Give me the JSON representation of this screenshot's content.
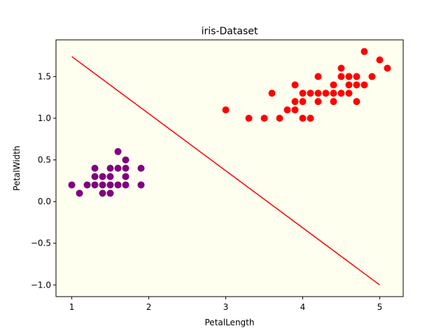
{
  "chart_data": {
    "type": "scatter",
    "title": "iris-Dataset",
    "xlabel": "PetalLength",
    "ylabel": "PetalWidth",
    "xlim": [
      0.795,
      5.305
    ],
    "ylim": [
      -1.14,
      1.94
    ],
    "xticks": [
      1,
      2,
      3,
      4,
      5
    ],
    "yticks": [
      -1.0,
      -0.5,
      0.0,
      0.5,
      1.0,
      1.5
    ],
    "ytick_labels": [
      "−1.0",
      "−0.5",
      "0.0",
      "0.5",
      "1.0",
      "1.5"
    ],
    "grid": false,
    "legend": false,
    "plot_background": "#fffff0",
    "series": [
      {
        "color": "#800080",
        "points": [
          [
            1.0,
            0.2
          ],
          [
            1.1,
            0.1
          ],
          [
            1.2,
            0.2
          ],
          [
            1.3,
            0.2
          ],
          [
            1.3,
            0.3
          ],
          [
            1.3,
            0.4
          ],
          [
            1.4,
            0.1
          ],
          [
            1.4,
            0.2
          ],
          [
            1.4,
            0.3
          ],
          [
            1.5,
            0.1
          ],
          [
            1.5,
            0.2
          ],
          [
            1.5,
            0.3
          ],
          [
            1.5,
            0.4
          ],
          [
            1.6,
            0.2
          ],
          [
            1.6,
            0.4
          ],
          [
            1.6,
            0.6
          ],
          [
            1.7,
            0.2
          ],
          [
            1.7,
            0.3
          ],
          [
            1.7,
            0.4
          ],
          [
            1.7,
            0.5
          ],
          [
            1.9,
            0.2
          ],
          [
            1.9,
            0.4
          ]
        ]
      },
      {
        "color": "#ff0000",
        "points": [
          [
            3.0,
            1.1
          ],
          [
            3.3,
            1.0
          ],
          [
            3.5,
            1.0
          ],
          [
            3.6,
            1.3
          ],
          [
            3.7,
            1.0
          ],
          [
            3.8,
            1.1
          ],
          [
            3.9,
            1.1
          ],
          [
            3.9,
            1.2
          ],
          [
            3.9,
            1.4
          ],
          [
            4.0,
            1.0
          ],
          [
            4.0,
            1.2
          ],
          [
            4.0,
            1.3
          ],
          [
            4.1,
            1.0
          ],
          [
            4.1,
            1.3
          ],
          [
            4.2,
            1.2
          ],
          [
            4.2,
            1.3
          ],
          [
            4.2,
            1.5
          ],
          [
            4.3,
            1.3
          ],
          [
            4.4,
            1.2
          ],
          [
            4.4,
            1.3
          ],
          [
            4.4,
            1.4
          ],
          [
            4.5,
            1.3
          ],
          [
            4.5,
            1.5
          ],
          [
            4.5,
            1.6
          ],
          [
            4.6,
            1.3
          ],
          [
            4.6,
            1.4
          ],
          [
            4.6,
            1.5
          ],
          [
            4.7,
            1.2
          ],
          [
            4.7,
            1.4
          ],
          [
            4.7,
            1.5
          ],
          [
            4.8,
            1.4
          ],
          [
            4.8,
            1.8
          ],
          [
            4.9,
            1.5
          ],
          [
            5.0,
            1.7
          ],
          [
            5.1,
            1.6
          ]
        ]
      }
    ],
    "lines": [
      {
        "color": "#ff0000",
        "points": [
          [
            1.0,
            1.74
          ],
          [
            5.0,
            -1.0
          ]
        ]
      }
    ]
  }
}
